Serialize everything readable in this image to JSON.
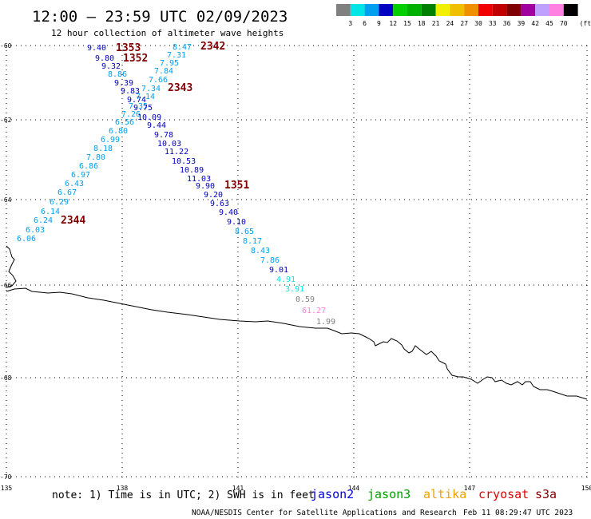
{
  "title": "12:00 – 23:59 UTC 02/09/2023",
  "subtitle": "12 hour collection of altimeter wave heights",
  "scale": {
    "labels": [
      "3",
      "6",
      "9",
      "12",
      "15",
      "18",
      "21",
      "24",
      "27",
      "30",
      "33",
      "36",
      "39",
      "42",
      "45",
      "70"
    ],
    "unit": "(ft)",
    "colors": [
      "#808080",
      "#00e5e5",
      "#00a0f0",
      "#0000c0",
      "#00d000",
      "#00b000",
      "#008000",
      "#f0f000",
      "#f0c000",
      "#f09000",
      "#f00000",
      "#c00000",
      "#800000",
      "#a000a0",
      "#c0a0ff",
      "#ff80e0",
      "#000000"
    ]
  },
  "axes": {
    "lat_labels": [
      "-60",
      "-62",
      "-64",
      "-66",
      "-68",
      "-70"
    ],
    "lon_labels": [
      "135",
      "138",
      "141",
      "144",
      "147",
      "150"
    ]
  },
  "observations": [
    {
      "t": "8.47",
      "c": "#00a0f0"
    },
    {
      "t": "7.31",
      "c": "#00a0f0"
    },
    {
      "t": "7.95",
      "c": "#00a0f0"
    },
    {
      "t": "7.84",
      "c": "#00a0f0"
    },
    {
      "t": "7.66",
      "c": "#00a0f0"
    },
    {
      "t": "7.34",
      "c": "#00a0f0"
    },
    {
      "t": "7.14",
      "c": "#00a0f0"
    },
    {
      "t": "7.26",
      "c": "#00a0f0"
    },
    {
      "t": "7.35",
      "c": "#00a0f0"
    },
    {
      "t": "6.56",
      "c": "#00a0f0"
    },
    {
      "t": "6.80",
      "c": "#00a0f0"
    },
    {
      "t": "6.99",
      "c": "#00a0f0"
    },
    {
      "t": "8.18",
      "c": "#00a0f0"
    },
    {
      "t": "7.80",
      "c": "#00a0f0"
    },
    {
      "t": "6.86",
      "c": "#00a0f0"
    },
    {
      "t": "6.97",
      "c": "#00a0f0"
    },
    {
      "t": "6.43",
      "c": "#00a0f0"
    },
    {
      "t": "6.67",
      "c": "#00a0f0"
    },
    {
      "t": "6.29",
      "c": "#00a0f0"
    },
    {
      "t": "6.14",
      "c": "#00a0f0"
    },
    {
      "t": "6.24",
      "c": "#00a0f0"
    },
    {
      "t": "6.03",
      "c": "#00a0f0"
    },
    {
      "t": "6.06",
      "c": "#00a0f0"
    },
    {
      "t": "9.40",
      "c": "#0000c0"
    },
    {
      "t": "9.80",
      "c": "#0000c0"
    },
    {
      "t": "9.32",
      "c": "#0000c0"
    },
    {
      "t": "8.86",
      "c": "#00a0f0"
    },
    {
      "t": "9.39",
      "c": "#0000c0"
    },
    {
      "t": "9.83",
      "c": "#0000c0"
    },
    {
      "t": "9.74",
      "c": "#0000c0"
    },
    {
      "t": "9.75",
      "c": "#0000c0"
    },
    {
      "t": "10.09",
      "c": "#0000c0"
    },
    {
      "t": "9.44",
      "c": "#0000c0"
    },
    {
      "t": "9.78",
      "c": "#0000c0"
    },
    {
      "t": "10.03",
      "c": "#0000c0"
    },
    {
      "t": "11.22",
      "c": "#0000c0"
    },
    {
      "t": "10.53",
      "c": "#0000c0"
    },
    {
      "t": "10.89",
      "c": "#0000c0"
    },
    {
      "t": "11.03",
      "c": "#0000c0"
    },
    {
      "t": "9.90",
      "c": "#0000c0"
    },
    {
      "t": "9.20",
      "c": "#0000c0"
    },
    {
      "t": "9.63",
      "c": "#0000c0"
    },
    {
      "t": "9.40",
      "c": "#0000c0"
    },
    {
      "t": "9.10",
      "c": "#0000c0"
    },
    {
      "t": "8.65",
      "c": "#00a0f0"
    },
    {
      "t": "8.17",
      "c": "#00a0f0"
    },
    {
      "t": "8.43",
      "c": "#00a0f0"
    },
    {
      "t": "7.86",
      "c": "#00a0f0"
    },
    {
      "t": "9.01",
      "c": "#0000c0"
    },
    {
      "t": "4.91",
      "c": "#00e5e5"
    },
    {
      "t": "3.91",
      "c": "#00e5e5"
    },
    {
      "t": "0.59",
      "c": "#808080"
    },
    {
      "t": "61.27",
      "c": "#ff80e0"
    },
    {
      "t": "1.99",
      "c": "#808080"
    }
  ],
  "passes": [
    "1353",
    "1352",
    "2342",
    "2343",
    "1351",
    "2344"
  ],
  "note": "note: 1) Time is in UTC; 2) SWH is in feet",
  "satellites": [
    {
      "name": "jason2",
      "color": "#0000e0"
    },
    {
      "name": "jason3",
      "color": "#00a000"
    },
    {
      "name": "altika",
      "color": "#f0a000"
    },
    {
      "name": "cryosat",
      "color": "#e00000"
    },
    {
      "name": "s3a",
      "color": "#800000"
    }
  ],
  "credit": "NOAA/NESDIS Center for Satellite Applications and Research",
  "timestamp": "Feb 11 08:29:47 UTC 2023"
}
